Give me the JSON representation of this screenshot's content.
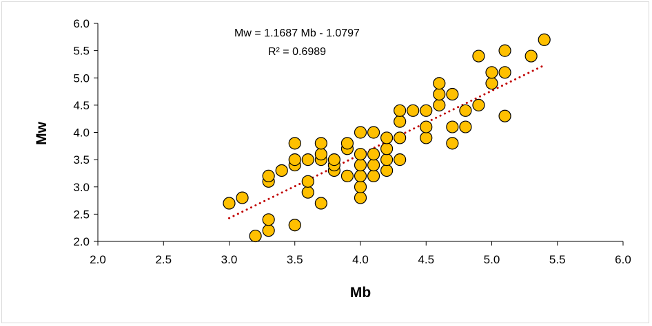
{
  "chart_data": {
    "type": "scatter",
    "title": "",
    "xlabel": "Mb",
    "ylabel": "Mw",
    "xlim": [
      2.0,
      6.0
    ],
    "ylim": [
      2.0,
      6.0
    ],
    "x_ticks": [
      "2.0",
      "2.5",
      "3.0",
      "3.5",
      "4.0",
      "4.5",
      "5.0",
      "5.5",
      "6.0"
    ],
    "y_ticks": [
      "2.0",
      "2.5",
      "3.0",
      "3.5",
      "4.0",
      "4.5",
      "5.0",
      "5.5",
      "6.0"
    ],
    "grid": false,
    "legend": "none",
    "marker_fill": "#FFC000",
    "marker_stroke": "#000000",
    "trend_color": "#C00000",
    "trendline": {
      "slope": 1.1687,
      "intercept": -1.0797,
      "x_range": [
        3.0,
        5.4
      ],
      "style": "dotted",
      "equation": "Mw = 1.1687 Mb - 1.0797",
      "r2": "R² = 0.6989"
    },
    "points": [
      [
        3.0,
        2.7
      ],
      [
        3.1,
        2.8
      ],
      [
        3.2,
        2.1
      ],
      [
        3.3,
        2.2
      ],
      [
        3.3,
        2.4
      ],
      [
        3.3,
        3.1
      ],
      [
        3.3,
        3.2
      ],
      [
        3.4,
        3.3
      ],
      [
        3.5,
        2.3
      ],
      [
        3.5,
        3.4
      ],
      [
        3.5,
        3.5
      ],
      [
        3.5,
        3.8
      ],
      [
        3.6,
        2.9
      ],
      [
        3.6,
        3.1
      ],
      [
        3.6,
        3.5
      ],
      [
        3.7,
        2.7
      ],
      [
        3.7,
        3.5
      ],
      [
        3.7,
        3.6
      ],
      [
        3.7,
        3.8
      ],
      [
        3.8,
        3.3
      ],
      [
        3.8,
        3.4
      ],
      [
        3.8,
        3.5
      ],
      [
        3.9,
        3.2
      ],
      [
        3.9,
        3.7
      ],
      [
        3.9,
        3.8
      ],
      [
        4.0,
        2.8
      ],
      [
        4.0,
        3.0
      ],
      [
        4.0,
        3.2
      ],
      [
        4.0,
        3.4
      ],
      [
        4.0,
        3.6
      ],
      [
        4.0,
        4.0
      ],
      [
        4.1,
        3.2
      ],
      [
        4.1,
        3.4
      ],
      [
        4.1,
        3.6
      ],
      [
        4.1,
        4.0
      ],
      [
        4.2,
        3.3
      ],
      [
        4.2,
        3.5
      ],
      [
        4.2,
        3.7
      ],
      [
        4.2,
        3.9
      ],
      [
        4.3,
        3.5
      ],
      [
        4.3,
        3.9
      ],
      [
        4.3,
        4.2
      ],
      [
        4.3,
        4.4
      ],
      [
        4.4,
        4.4
      ],
      [
        4.5,
        3.9
      ],
      [
        4.5,
        4.1
      ],
      [
        4.5,
        4.4
      ],
      [
        4.6,
        4.5
      ],
      [
        4.6,
        4.7
      ],
      [
        4.6,
        4.9
      ],
      [
        4.7,
        3.8
      ],
      [
        4.7,
        4.1
      ],
      [
        4.7,
        4.7
      ],
      [
        4.8,
        4.1
      ],
      [
        4.8,
        4.4
      ],
      [
        4.9,
        4.5
      ],
      [
        4.9,
        5.4
      ],
      [
        5.0,
        4.9
      ],
      [
        5.0,
        5.1
      ],
      [
        5.1,
        4.3
      ],
      [
        5.1,
        5.1
      ],
      [
        5.1,
        5.5
      ],
      [
        5.3,
        5.4
      ],
      [
        5.4,
        5.7
      ]
    ]
  }
}
